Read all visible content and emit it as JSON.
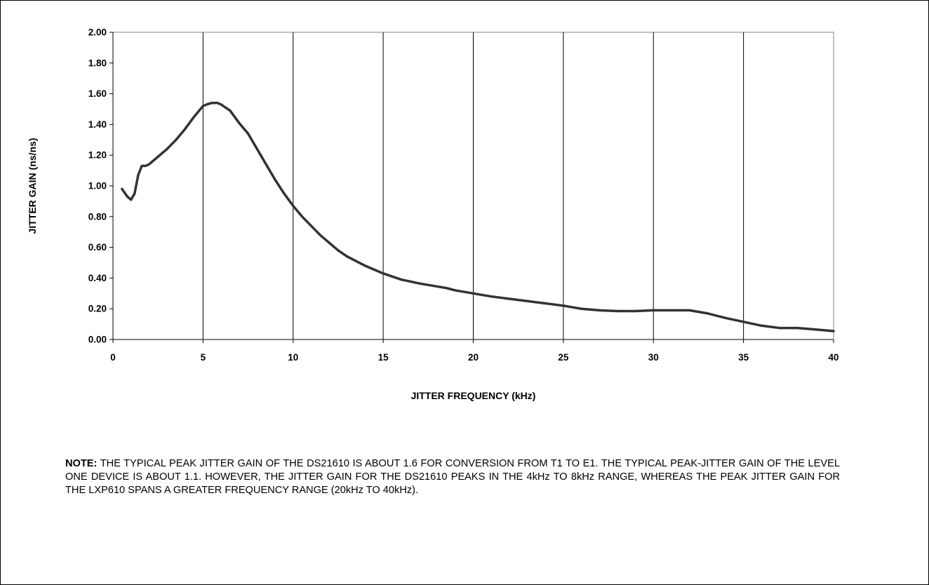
{
  "chart_data": {
    "type": "line",
    "title": "",
    "xlabel": "JITTER FREQUENCY (kHz)",
    "ylabel": "JITTER GAIN (ns/ns)",
    "xlim": [
      0,
      40
    ],
    "ylim": [
      0,
      2.0
    ],
    "x_ticks": [
      "0",
      "5",
      "10",
      "15",
      "20",
      "25",
      "30",
      "35",
      "40"
    ],
    "y_ticks": [
      "0.00",
      "0.20",
      "0.40",
      "0.60",
      "0.80",
      "1.00",
      "1.20",
      "1.40",
      "1.60",
      "1.80",
      "2.00"
    ],
    "grid": "vertical lines at each x tick",
    "legend": "none",
    "line_color": "#333333",
    "series": [
      {
        "x": [
          0.5,
          0.8,
          1.0,
          1.2,
          1.4,
          1.6,
          1.8,
          2.0,
          2.5,
          3.0,
          3.5,
          4.0,
          4.5,
          5.0,
          5.2,
          5.5,
          5.8,
          6.0,
          6.5,
          7.0,
          7.5,
          8.0,
          8.5,
          9.0,
          9.5,
          10.0,
          10.5,
          11.0,
          11.5,
          12.0,
          12.5,
          13.0,
          14.0,
          15.0,
          16.0,
          17.0,
          18.0,
          18.5,
          19.0,
          20.0,
          21.0,
          22.0,
          23.0,
          24.0,
          25.0,
          26.0,
          27.0,
          28.0,
          29.0,
          30.0,
          31.0,
          32.0,
          33.0,
          34.0,
          35.0,
          36.0,
          37.0,
          38.0,
          39.0,
          40.0
        ],
        "values": [
          0.98,
          0.93,
          0.91,
          0.95,
          1.07,
          1.13,
          1.13,
          1.14,
          1.19,
          1.24,
          1.3,
          1.37,
          1.45,
          1.52,
          1.53,
          1.54,
          1.54,
          1.53,
          1.49,
          1.41,
          1.34,
          1.24,
          1.14,
          1.04,
          0.95,
          0.87,
          0.8,
          0.74,
          0.68,
          0.63,
          0.58,
          0.54,
          0.48,
          0.43,
          0.39,
          0.365,
          0.345,
          0.335,
          0.32,
          0.3,
          0.28,
          0.265,
          0.25,
          0.235,
          0.22,
          0.2,
          0.19,
          0.185,
          0.185,
          0.19,
          0.19,
          0.19,
          0.17,
          0.14,
          0.115,
          0.09,
          0.075,
          0.075,
          0.065,
          0.055
        ]
      }
    ]
  },
  "note": {
    "label": "NOTE:",
    "text": "THE TYPICAL PEAK JITTER GAIN OF THE DS21610 IS ABOUT 1.6 FOR CONVERSION FROM T1 TO E1. THE TYPICAL PEAK-JITTER GAIN OF THE LEVEL ONE DEVICE IS ABOUT 1.1. HOWEVER, THE JITTER GAIN FOR THE DS21610 PEAKS IN THE 4kHz TO 8kHz RANGE, WHEREAS THE PEAK JITTER GAIN FOR THE LXP610 SPANS A GREATER FREQUENCY RANGE (20kHz TO 40kHz)."
  }
}
